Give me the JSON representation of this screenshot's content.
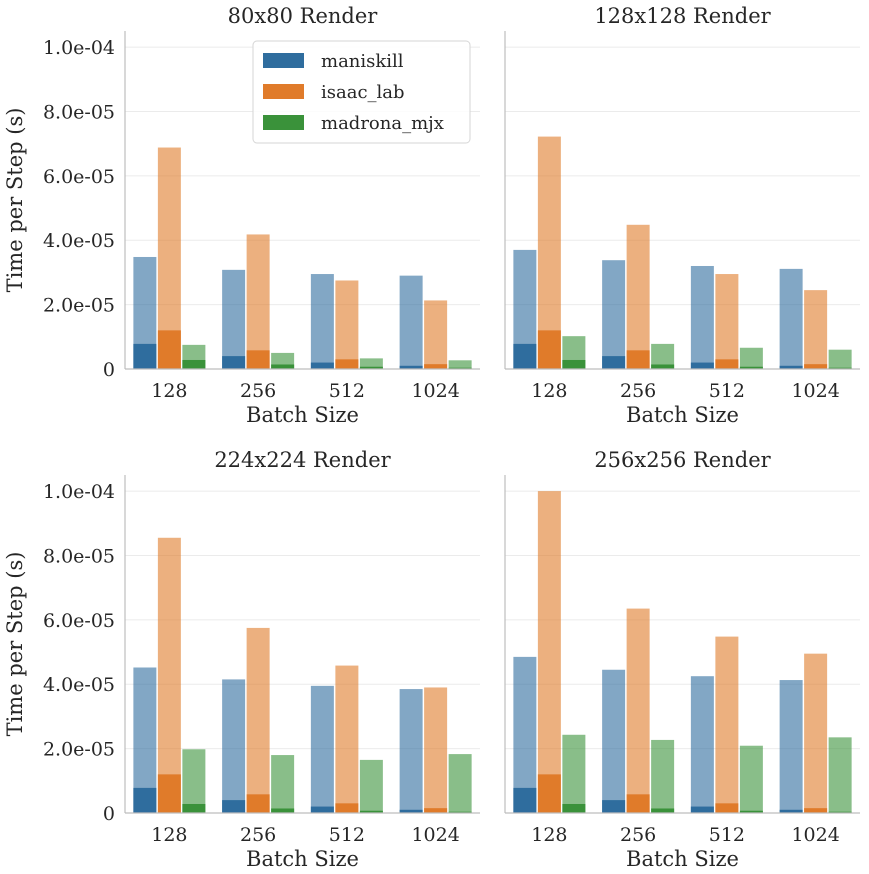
{
  "chart_data": [
    {
      "type": "bar",
      "title": "80x80 Render",
      "xlabel": "Batch Size",
      "ylabel": "Time per Step (s)",
      "categories": [
        "128",
        "256",
        "512",
        "1024"
      ],
      "ylim": [
        0,
        0.000105
      ],
      "yticks": [
        0,
        2e-05,
        4e-05,
        6e-05,
        8e-05,
        0.0001
      ],
      "ytick_labels": [
        "0",
        "2.0e-05",
        "4.0e-05",
        "6.0e-05",
        "8.0e-05",
        "1.0e-04"
      ],
      "show_legend": true,
      "series": [
        {
          "name": "maniskill",
          "total": [
            3.48e-05,
            3.08e-05,
            2.95e-05,
            2.9e-05
          ],
          "base": [
            7.8e-06,
            4e-06,
            2e-06,
            1e-06
          ]
        },
        {
          "name": "isaac_lab",
          "total": [
            6.88e-05,
            4.18e-05,
            2.75e-05,
            2.13e-05
          ],
          "base": [
            1.2e-05,
            5.8e-06,
            3e-06,
            1.5e-06
          ]
        },
        {
          "name": "madrona_mjx",
          "total": [
            7.5e-06,
            5e-06,
            3.3e-06,
            2.7e-06
          ],
          "base": [
            2.8e-06,
            1.4e-06,
            7e-07,
            4e-07
          ]
        }
      ]
    },
    {
      "type": "bar",
      "title": "128x128 Render",
      "xlabel": "Batch Size",
      "ylabel": "",
      "categories": [
        "128",
        "256",
        "512",
        "1024"
      ],
      "ylim": [
        0,
        0.000105
      ],
      "yticks": [
        0,
        2e-05,
        4e-05,
        6e-05,
        8e-05,
        0.0001
      ],
      "ytick_labels": [],
      "show_legend": false,
      "series": [
        {
          "name": "maniskill",
          "total": [
            3.7e-05,
            3.38e-05,
            3.2e-05,
            3.11e-05
          ],
          "base": [
            7.8e-06,
            4e-06,
            2e-06,
            1e-06
          ]
        },
        {
          "name": "isaac_lab",
          "total": [
            7.22e-05,
            4.48e-05,
            2.95e-05,
            2.45e-05
          ],
          "base": [
            1.2e-05,
            5.8e-06,
            3e-06,
            1.5e-06
          ]
        },
        {
          "name": "madrona_mjx",
          "total": [
            1.02e-05,
            7.8e-06,
            6.6e-06,
            6e-06
          ],
          "base": [
            2.8e-06,
            1.4e-06,
            7e-07,
            4e-07
          ]
        }
      ]
    },
    {
      "type": "bar",
      "title": "224x224 Render",
      "xlabel": "Batch Size",
      "ylabel": "Time per Step (s)",
      "categories": [
        "128",
        "256",
        "512",
        "1024"
      ],
      "ylim": [
        0,
        0.000105
      ],
      "yticks": [
        0,
        2e-05,
        4e-05,
        6e-05,
        8e-05,
        0.0001
      ],
      "ytick_labels": [
        "0",
        "2.0e-05",
        "4.0e-05",
        "6.0e-05",
        "8.0e-05",
        "1.0e-04"
      ],
      "show_legend": false,
      "series": [
        {
          "name": "maniskill",
          "total": [
            4.52e-05,
            4.15e-05,
            3.95e-05,
            3.85e-05
          ],
          "base": [
            7.8e-06,
            4e-06,
            2e-06,
            1e-06
          ]
        },
        {
          "name": "isaac_lab",
          "total": [
            8.55e-05,
            5.75e-05,
            4.58e-05,
            3.9e-05
          ],
          "base": [
            1.2e-05,
            5.8e-06,
            3e-06,
            1.5e-06
          ]
        },
        {
          "name": "madrona_mjx",
          "total": [
            1.98e-05,
            1.8e-05,
            1.65e-05,
            1.83e-05
          ],
          "base": [
            2.8e-06,
            1.4e-06,
            7e-07,
            4e-07
          ]
        }
      ]
    },
    {
      "type": "bar",
      "title": "256x256 Render",
      "xlabel": "Batch Size",
      "ylabel": "",
      "categories": [
        "128",
        "256",
        "512",
        "1024"
      ],
      "ylim": [
        0,
        0.000105
      ],
      "yticks": [
        0,
        2e-05,
        4e-05,
        6e-05,
        8e-05,
        0.0001
      ],
      "ytick_labels": [],
      "show_legend": false,
      "series": [
        {
          "name": "maniskill",
          "total": [
            4.85e-05,
            4.45e-05,
            4.25e-05,
            4.13e-05
          ],
          "base": [
            7.8e-06,
            4e-06,
            2e-06,
            1e-06
          ]
        },
        {
          "name": "isaac_lab",
          "total": [
            0.0001,
            6.35e-05,
            5.48e-05,
            4.95e-05
          ],
          "base": [
            1.2e-05,
            5.8e-06,
            3e-06,
            1.5e-06
          ]
        },
        {
          "name": "madrona_mjx",
          "total": [
            2.43e-05,
            2.27e-05,
            2.09e-05,
            2.35e-05
          ],
          "base": [
            2.8e-06,
            1.4e-06,
            7e-07,
            4e-07
          ]
        }
      ]
    }
  ],
  "colors": {
    "maniskill": "#2f6d9e",
    "isaac_lab": "#e07b2a",
    "madrona_mjx": "#3a923a"
  },
  "legend": {
    "placement": "top-right",
    "items": [
      "maniskill",
      "isaac_lab",
      "madrona_mjx"
    ]
  }
}
